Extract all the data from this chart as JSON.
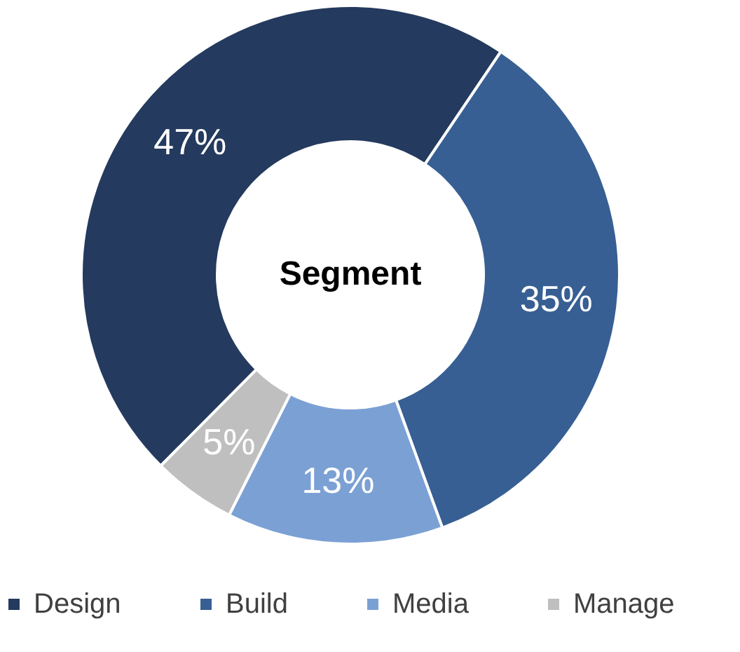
{
  "chart_data": {
    "type": "donut",
    "title": "Segment",
    "categories": [
      "Design",
      "Build",
      "Media",
      "Manage"
    ],
    "values": [
      47,
      35,
      13,
      5
    ],
    "colors": [
      "#243a5e",
      "#375f93",
      "#7ba0d4",
      "#bfbfbf"
    ],
    "value_labels": [
      "47%",
      "35%",
      "13%",
      "5%"
    ],
    "legend": "bottom"
  }
}
